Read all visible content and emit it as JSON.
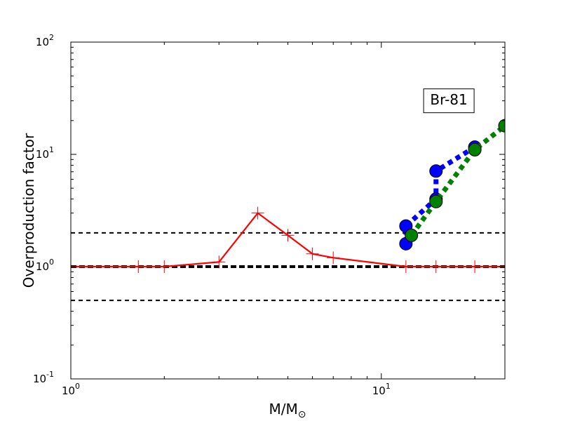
{
  "chart_data": {
    "type": "line",
    "xscale": "log",
    "yscale": "log",
    "xlim": [
      1,
      25
    ],
    "ylim": [
      0.1,
      100
    ],
    "xlabel": "M/M",
    "xlabel_subscript": "⊙",
    "ylabel": "Overproduction factor",
    "grid": false,
    "x_ticks": [
      {
        "value": 1,
        "base": "10",
        "exp": "0"
      },
      {
        "value": 10,
        "base": "10",
        "exp": "1"
      }
    ],
    "y_ticks": [
      {
        "value": 0.1,
        "base": "10",
        "exp": "-1"
      },
      {
        "value": 1,
        "base": "10",
        "exp": "0"
      },
      {
        "value": 10,
        "base": "10",
        "exp": "1"
      },
      {
        "value": 100,
        "base": "10",
        "exp": "2"
      }
    ],
    "annotation": {
      "text": "Br-81",
      "x": 16.5,
      "y": 30
    },
    "reference_lines": [
      {
        "y": 2.0,
        "color": "#000000",
        "style": "dashed",
        "width": "thin"
      },
      {
        "y": 1.0,
        "color": "#000000",
        "style": "dashed",
        "width": "thick"
      },
      {
        "y": 0.5,
        "color": "#000000",
        "style": "dashed",
        "width": "thin"
      }
    ],
    "series": [
      {
        "color": "#ff0000",
        "style": "solid",
        "marker": "plus",
        "x": [
          1,
          1.65,
          2,
          3,
          4,
          5,
          6,
          7,
          12,
          15,
          20,
          25
        ],
        "y": [
          1.0,
          1.0,
          1.0,
          1.1,
          3.0,
          1.9,
          1.3,
          1.2,
          1.0,
          1.0,
          1.0,
          1.0
        ]
      },
      {
        "color": "#0000ff",
        "style": "dotted",
        "marker": "circle",
        "x": [
          12,
          12,
          15,
          15,
          20
        ],
        "y": [
          1.6,
          2.3,
          4.0,
          7.1,
          11.6
        ]
      },
      {
        "color": "#008000",
        "style": "dotted",
        "marker": "circle",
        "x": [
          12.5,
          15,
          20,
          25
        ],
        "y": [
          1.9,
          3.8,
          11.0,
          18.0
        ]
      }
    ]
  }
}
